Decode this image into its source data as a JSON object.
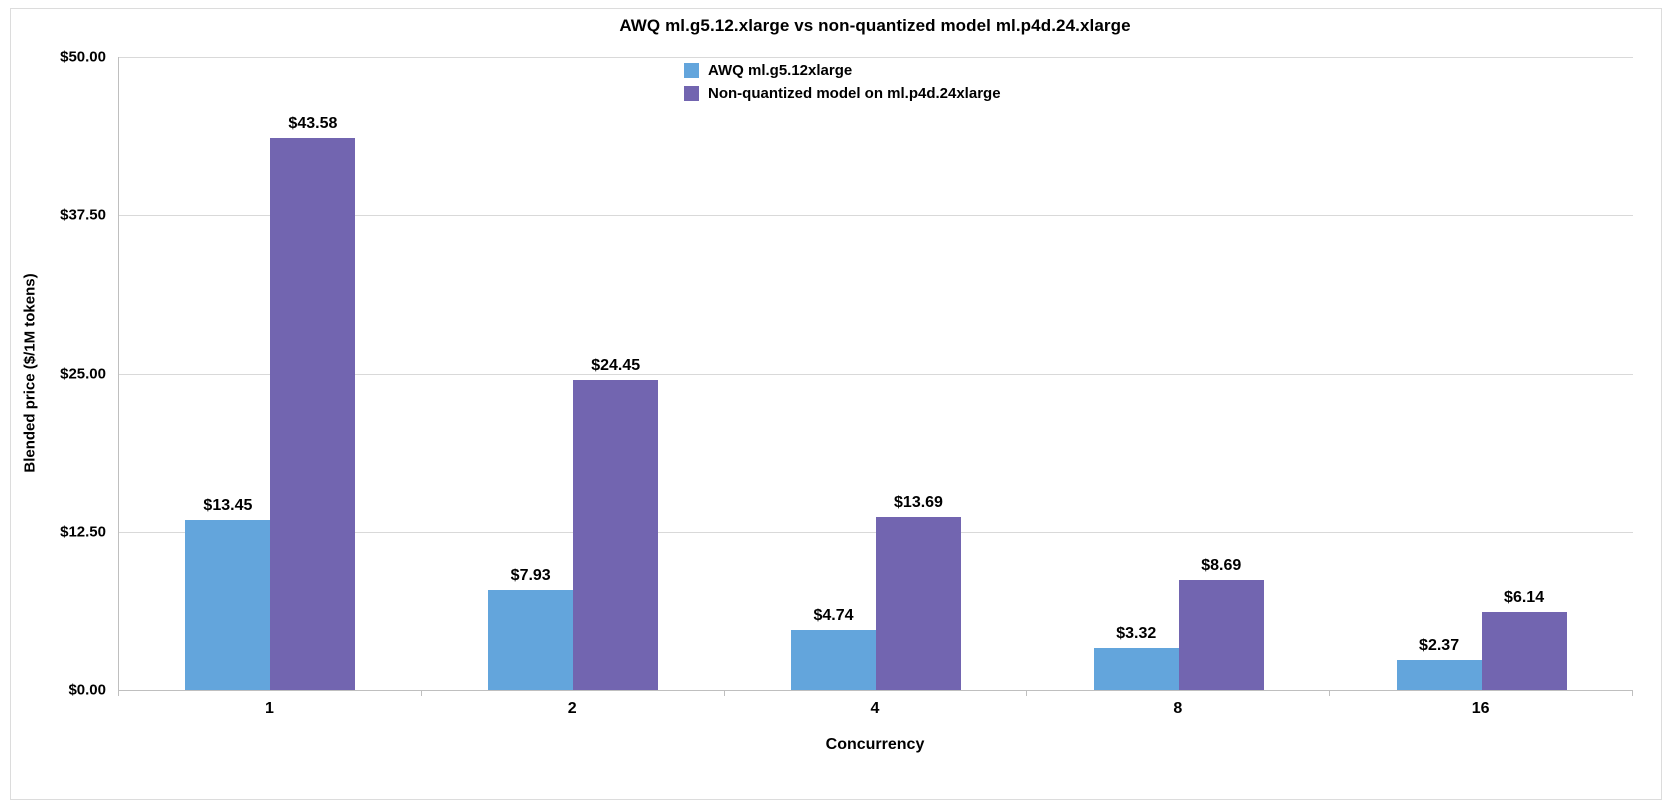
{
  "chart_data": {
    "type": "bar",
    "title": "AWQ ml.g5.12.xlarge vs non-quantized model ml.p4d.24.xlarge",
    "xlabel": "Concurrency",
    "ylabel": "Blended price ($/1M tokens)",
    "categories": [
      "1",
      "2",
      "4",
      "8",
      "16"
    ],
    "series": [
      {
        "name": "AWQ ml.g5.12xlarge",
        "color": "#63A5DC",
        "values": [
          13.45,
          7.93,
          4.74,
          3.32,
          2.37
        ],
        "value_labels": [
          "$13.45",
          "$7.93",
          "$4.74",
          "$3.32",
          "$2.37"
        ]
      },
      {
        "name": "Non-quantized model on ml.p4d.24xlarge",
        "color": "#7265B0",
        "values": [
          43.58,
          24.45,
          13.69,
          8.69,
          6.14
        ],
        "value_labels": [
          "$43.58",
          "$24.45",
          "$13.69",
          "$8.69",
          "$6.14"
        ]
      }
    ],
    "ylim": [
      0,
      50
    ],
    "yticks": [
      "$0.00",
      "$12.50",
      "$25.00",
      "$37.50",
      "$50.00"
    ],
    "grid": "horizontal",
    "legend_position": "top-center",
    "colors": {
      "gridline": "#d9d9d9",
      "axis_line": "#bfbfbf",
      "text": "#000000",
      "background": "#ffffff"
    }
  }
}
